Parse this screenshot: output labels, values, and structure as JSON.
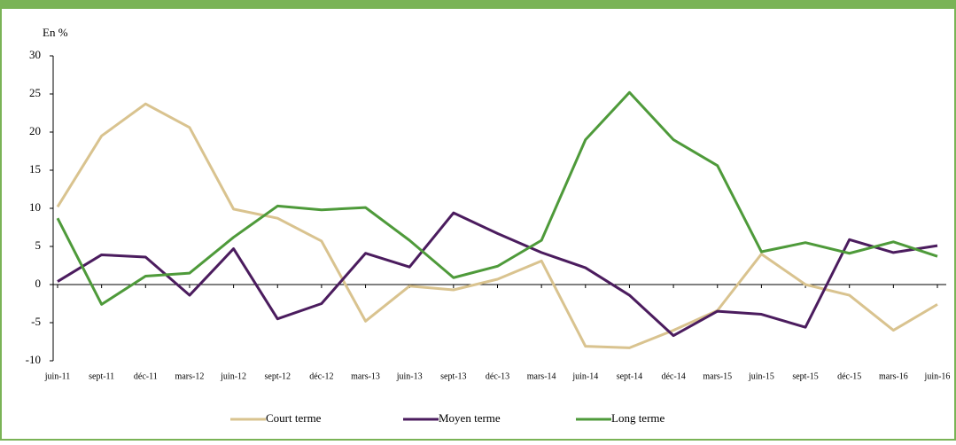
{
  "chart_data": {
    "type": "line",
    "y_label": "En %",
    "categories": [
      "juin-11",
      "sept-11",
      "déc-11",
      "mars-12",
      "juin-12",
      "sept-12",
      "déc-12",
      "mars-13",
      "juin-13",
      "sept-13",
      "déc-13",
      "mars-14",
      "juin-14",
      "sept-14",
      "déc-14",
      "mars-15",
      "juin-15",
      "sept-15",
      "déc-15",
      "mars-16",
      "juin-16"
    ],
    "series": [
      {
        "name": "Court terme",
        "color": "#d9c38f",
        "values": [
          10.2,
          19.5,
          23.7,
          20.6,
          9.9,
          8.7,
          5.7,
          -4.8,
          -0.2,
          -0.7,
          0.7,
          3.1,
          -8.1,
          -8.3,
          -6.0,
          -3.4,
          4.0,
          0,
          -1.4,
          -6.0,
          -2.6
        ]
      },
      {
        "name": "Moyen terme",
        "color": "#4b1c5e",
        "values": [
          0.4,
          3.9,
          3.6,
          -1.4,
          4.7,
          -4.5,
          -2.5,
          4.1,
          2.3,
          9.4,
          6.7,
          4.2,
          2.2,
          -1.4,
          -6.7,
          -3.5,
          -3.9,
          -5.6,
          5.9,
          4.2,
          5.1
        ]
      },
      {
        "name": "Long terme",
        "color": "#4e9a3a",
        "values": [
          8.7,
          -2.6,
          1.1,
          1.5,
          6.2,
          10.3,
          9.8,
          10.1,
          5.8,
          0.9,
          2.4,
          5.8,
          19.0,
          25.2,
          19.0,
          15.6,
          4.3,
          5.5,
          4.1,
          5.6,
          3.7
        ]
      }
    ],
    "ylim": [
      -10,
      30
    ],
    "yticks": [
      -10,
      -5,
      0,
      5,
      10,
      15,
      20,
      25,
      30
    ],
    "legend": "bottom"
  }
}
